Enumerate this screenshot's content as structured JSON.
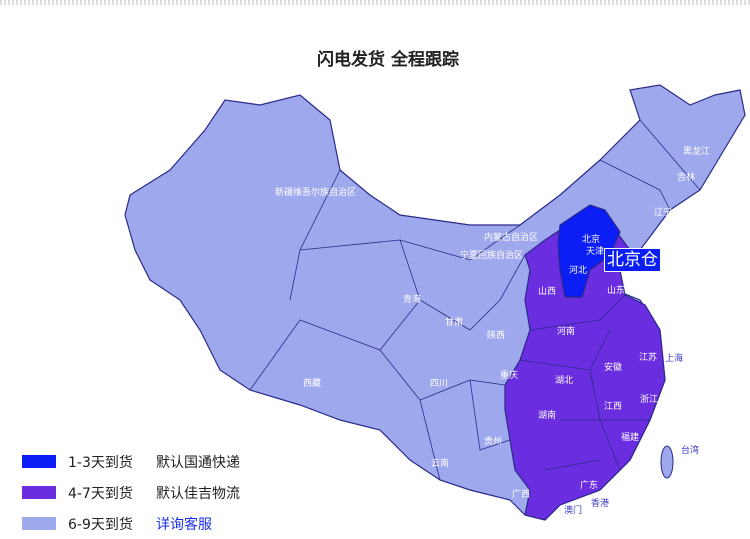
{
  "title": "闪电发货 全程跟踪",
  "warehouse": "北京仓",
  "colors": {
    "fast": "#0a1ef5",
    "medium": "#6a2ee0",
    "slow": "#9ea8ec"
  },
  "provinces": [
    {
      "name": "新疆维吾尔族自治区",
      "tier": "slow"
    },
    {
      "name": "西藏",
      "tier": "slow"
    },
    {
      "name": "青海",
      "tier": "slow"
    },
    {
      "name": "甘肃",
      "tier": "slow"
    },
    {
      "name": "内蒙古自治区",
      "tier": "slow"
    },
    {
      "name": "宁夏回族自治区",
      "tier": "slow"
    },
    {
      "name": "陕西",
      "tier": "slow"
    },
    {
      "name": "四川",
      "tier": "slow"
    },
    {
      "name": "重庆",
      "tier": "slow"
    },
    {
      "name": "贵州",
      "tier": "slow"
    },
    {
      "name": "云南",
      "tier": "slow"
    },
    {
      "name": "广西",
      "tier": "slow"
    },
    {
      "name": "黑龙江",
      "tier": "slow"
    },
    {
      "name": "吉林",
      "tier": "slow"
    },
    {
      "name": "辽宁",
      "tier": "slow"
    },
    {
      "name": "北京",
      "tier": "fast"
    },
    {
      "name": "天津",
      "tier": "fast"
    },
    {
      "name": "河北",
      "tier": "fast"
    },
    {
      "name": "山西",
      "tier": "medium"
    },
    {
      "name": "山东",
      "tier": "medium"
    },
    {
      "name": "河南",
      "tier": "medium"
    },
    {
      "name": "江苏",
      "tier": "medium"
    },
    {
      "name": "安徽",
      "tier": "medium"
    },
    {
      "name": "湖北",
      "tier": "medium"
    },
    {
      "name": "浙江",
      "tier": "medium"
    },
    {
      "name": "江西",
      "tier": "medium"
    },
    {
      "name": "湖南",
      "tier": "medium"
    },
    {
      "name": "福建",
      "tier": "medium"
    },
    {
      "name": "广东",
      "tier": "medium"
    },
    {
      "name": "上海",
      "tier": "outside"
    },
    {
      "name": "台湾",
      "tier": "outside"
    },
    {
      "name": "香港",
      "tier": "medium"
    },
    {
      "name": "澳门",
      "tier": "medium"
    }
  ],
  "legend": [
    {
      "days": "1-3天到货",
      "note": "默认国通快递",
      "color": "#0a1ef5",
      "link": false
    },
    {
      "days": "4-7天到货",
      "note": "默认佳吉物流",
      "color": "#6a2ee0",
      "link": false
    },
    {
      "days": "6-9天到货",
      "note": "详询客服",
      "color": "#9ea8ec",
      "link": true
    }
  ]
}
